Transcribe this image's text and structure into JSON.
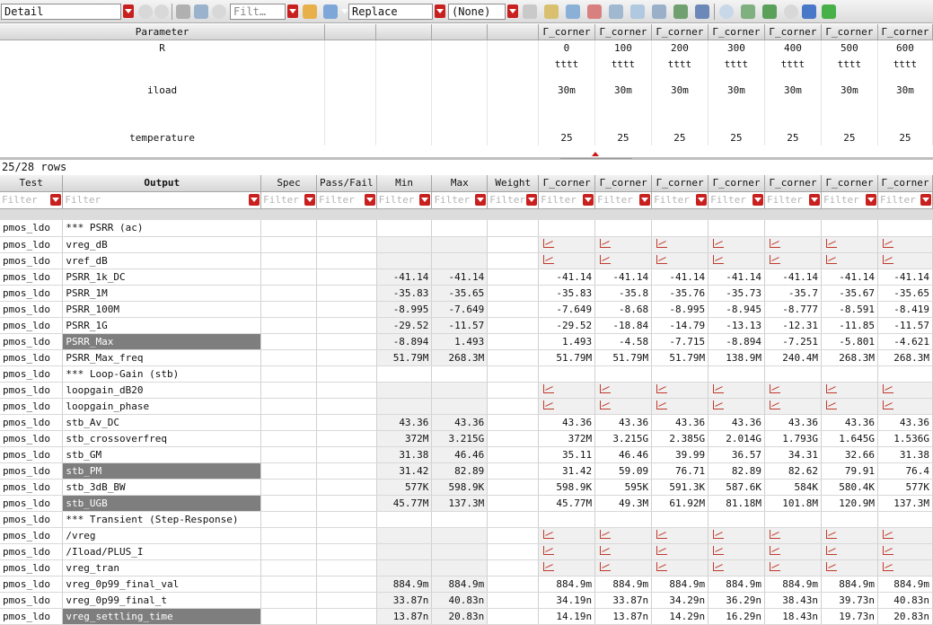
{
  "toolbar": {
    "view_mode": "Detail",
    "filter_placeholder": "Filt…",
    "replace_mode": "Replace",
    "none_select": "(None)"
  },
  "params": {
    "headers": [
      "Parameter",
      "",
      "",
      "",
      "",
      "Γ_corner",
      "Γ_corner",
      "Γ_corner",
      "Γ_corner",
      "Γ_corner",
      "Γ_corner",
      "Γ_corner"
    ],
    "rows": [
      {
        "name": "R",
        "values": [
          "0",
          "100",
          "200",
          "300",
          "400",
          "500",
          "600"
        ]
      },
      {
        "name": "",
        "values": [
          "tttt",
          "tttt",
          "tttt",
          "tttt",
          "tttt",
          "tttt",
          "tttt"
        ]
      },
      {
        "name": "iload",
        "values": [
          "30m",
          "30m",
          "30m",
          "30m",
          "30m",
          "30m",
          "30m"
        ]
      },
      {
        "name": "temperature",
        "values": [
          "25",
          "25",
          "25",
          "25",
          "25",
          "25",
          "25"
        ]
      }
    ]
  },
  "row_count": "25/28 rows",
  "outputs": {
    "headers": [
      "Test",
      "Output",
      "Spec",
      "Pass/Fail",
      "Min",
      "Max",
      "Weight",
      "Γ_corner",
      "Γ_corner",
      "Γ_corner",
      "Γ_corner",
      "Γ_corner",
      "Γ_corner",
      "Γ_corner"
    ],
    "filter_placeholder": "Filter",
    "rows": [
      {
        "test": "pmos_ldo",
        "output": "*** PSRR (ac)",
        "type": "section",
        "sel": false,
        "min": "",
        "max": "",
        "vals": []
      },
      {
        "test": "pmos_ldo",
        "output": "vreg_dB",
        "type": "wave",
        "sel": false,
        "min": "",
        "max": "",
        "vals": []
      },
      {
        "test": "pmos_ldo",
        "output": "vref_dB",
        "type": "wave",
        "sel": false,
        "min": "",
        "max": "",
        "vals": []
      },
      {
        "test": "pmos_ldo",
        "output": "PSRR_1k_DC",
        "type": "num",
        "sel": false,
        "min": "-41.14",
        "max": "-41.14",
        "vals": [
          "-41.14",
          "-41.14",
          "-41.14",
          "-41.14",
          "-41.14",
          "-41.14",
          "-41.14"
        ]
      },
      {
        "test": "pmos_ldo",
        "output": "PSRR_1M",
        "type": "num",
        "sel": false,
        "min": "-35.83",
        "max": "-35.65",
        "vals": [
          "-35.83",
          "-35.8",
          "-35.76",
          "-35.73",
          "-35.7",
          "-35.67",
          "-35.65"
        ]
      },
      {
        "test": "pmos_ldo",
        "output": "PSRR_100M",
        "type": "num",
        "sel": false,
        "min": "-8.995",
        "max": "-7.649",
        "vals": [
          "-7.649",
          "-8.68",
          "-8.995",
          "-8.945",
          "-8.777",
          "-8.591",
          "-8.419"
        ]
      },
      {
        "test": "pmos_ldo",
        "output": "PSRR_1G",
        "type": "num",
        "sel": false,
        "min": "-29.52",
        "max": "-11.57",
        "vals": [
          "-29.52",
          "-18.84",
          "-14.79",
          "-13.13",
          "-12.31",
          "-11.85",
          "-11.57"
        ]
      },
      {
        "test": "pmos_ldo",
        "output": "PSRR_Max",
        "type": "num",
        "sel": true,
        "min": "-8.894",
        "max": "1.493",
        "vals": [
          "1.493",
          "-4.58",
          "-7.715",
          "-8.894",
          "-7.251",
          "-5.801",
          "-4.621"
        ]
      },
      {
        "test": "pmos_ldo",
        "output": "PSRR_Max_freq",
        "type": "num",
        "sel": false,
        "min": "51.79M",
        "max": "268.3M",
        "vals": [
          "51.79M",
          "51.79M",
          "51.79M",
          "138.9M",
          "240.4M",
          "268.3M",
          "268.3M"
        ]
      },
      {
        "test": "pmos_ldo",
        "output": "*** Loop-Gain (stb)",
        "type": "section",
        "sel": false,
        "min": "",
        "max": "",
        "vals": []
      },
      {
        "test": "pmos_ldo",
        "output": "loopgain_dB20",
        "type": "wave",
        "sel": false,
        "min": "",
        "max": "",
        "vals": []
      },
      {
        "test": "pmos_ldo",
        "output": "loopgain_phase",
        "type": "wave",
        "sel": false,
        "min": "",
        "max": "",
        "vals": []
      },
      {
        "test": "pmos_ldo",
        "output": "stb_Av_DC",
        "type": "num",
        "sel": false,
        "min": "43.36",
        "max": "43.36",
        "vals": [
          "43.36",
          "43.36",
          "43.36",
          "43.36",
          "43.36",
          "43.36",
          "43.36"
        ]
      },
      {
        "test": "pmos_ldo",
        "output": "stb_crossoverfreq",
        "type": "num",
        "sel": false,
        "min": "372M",
        "max": "3.215G",
        "vals": [
          "372M",
          "3.215G",
          "2.385G",
          "2.014G",
          "1.793G",
          "1.645G",
          "1.536G"
        ]
      },
      {
        "test": "pmos_ldo",
        "output": "stb_GM",
        "type": "num",
        "sel": false,
        "min": "31.38",
        "max": "46.46",
        "vals": [
          "35.11",
          "46.46",
          "39.99",
          "36.57",
          "34.31",
          "32.66",
          "31.38"
        ]
      },
      {
        "test": "pmos_ldo",
        "output": "stb_PM",
        "type": "num",
        "sel": true,
        "min": "31.42",
        "max": "82.89",
        "vals": [
          "31.42",
          "59.09",
          "76.71",
          "82.89",
          "82.62",
          "79.91",
          "76.4"
        ]
      },
      {
        "test": "pmos_ldo",
        "output": "stb_3dB_BW",
        "type": "num",
        "sel": false,
        "min": "577K",
        "max": "598.9K",
        "vals": [
          "598.9K",
          "595K",
          "591.3K",
          "587.6K",
          "584K",
          "580.4K",
          "577K"
        ]
      },
      {
        "test": "pmos_ldo",
        "output": "stb_UGB",
        "type": "num",
        "sel": true,
        "min": "45.77M",
        "max": "137.3M",
        "vals": [
          "45.77M",
          "49.3M",
          "61.92M",
          "81.18M",
          "101.8M",
          "120.9M",
          "137.3M"
        ]
      },
      {
        "test": "pmos_ldo",
        "output": "*** Transient (Step-Response)",
        "type": "section",
        "sel": false,
        "min": "",
        "max": "",
        "vals": []
      },
      {
        "test": "pmos_ldo",
        "output": "/vreg",
        "type": "wave",
        "sel": false,
        "min": "",
        "max": "",
        "vals": []
      },
      {
        "test": "pmos_ldo",
        "output": "/Iload/PLUS_I",
        "type": "wave",
        "sel": false,
        "min": "",
        "max": "",
        "vals": []
      },
      {
        "test": "pmos_ldo",
        "output": "vreg_tran",
        "type": "wave",
        "sel": false,
        "min": "",
        "max": "",
        "vals": []
      },
      {
        "test": "pmos_ldo",
        "output": "vreg_0p99_final_val",
        "type": "num",
        "sel": false,
        "min": "884.9m",
        "max": "884.9m",
        "vals": [
          "884.9m",
          "884.9m",
          "884.9m",
          "884.9m",
          "884.9m",
          "884.9m",
          "884.9m"
        ]
      },
      {
        "test": "pmos_ldo",
        "output": "vreg_0p99_final_t",
        "type": "num",
        "sel": false,
        "min": "33.87n",
        "max": "40.83n",
        "vals": [
          "34.19n",
          "33.87n",
          "34.29n",
          "36.29n",
          "38.43n",
          "39.73n",
          "40.83n"
        ]
      },
      {
        "test": "pmos_ldo",
        "output": "vreg_settling_time",
        "type": "num",
        "sel": true,
        "min": "13.87n",
        "max": "20.83n",
        "vals": [
          "14.19n",
          "13.87n",
          "14.29n",
          "16.29n",
          "18.43n",
          "19.73n",
          "20.83n"
        ]
      }
    ]
  }
}
